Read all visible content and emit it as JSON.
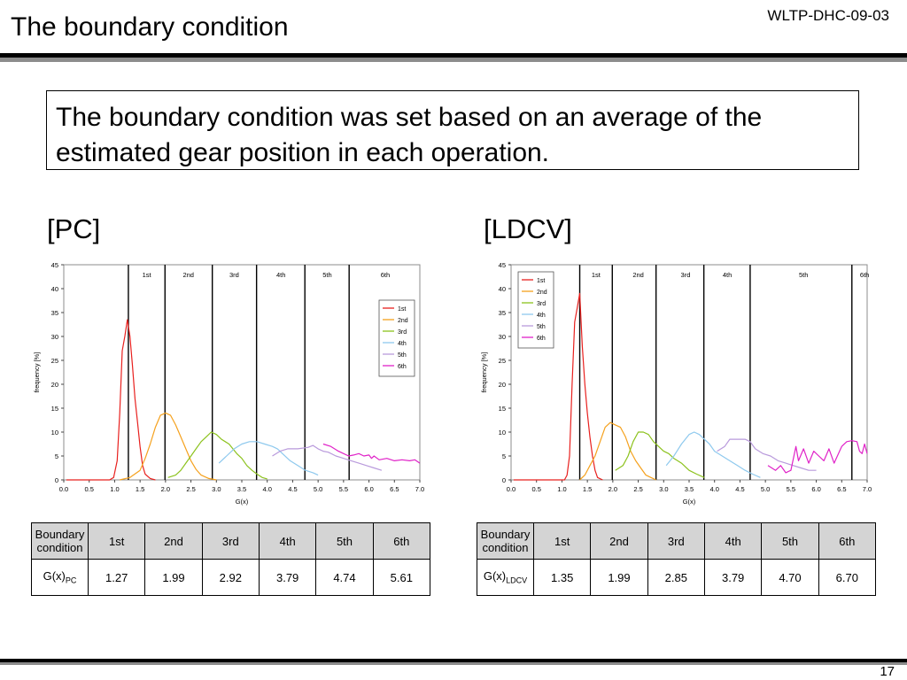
{
  "slide": {
    "title": "The boundary condition",
    "doc_id": "WLTP-DHC-09-03",
    "summary": "The boundary condition was set based on an average of the estimated gear position in each operation.",
    "page_number": "17"
  },
  "panels": [
    {
      "label": "[PC]"
    },
    {
      "label": "[LDCV]"
    }
  ],
  "chart_data": [
    {
      "type": "line",
      "xlabel": "G(x)",
      "ylabel": "frequency [%]",
      "xlim": [
        0.0,
        7.0
      ],
      "ylim": [
        0,
        45
      ],
      "xticks": [
        "0.0",
        "0.5",
        "1.0",
        "1.5",
        "2.0",
        "2.5",
        "3.0",
        "3.5",
        "4.0",
        "4.5",
        "5.0",
        "5.5",
        "6.0",
        "6.5",
        "7.0"
      ],
      "yticks": [
        "0",
        "5",
        "10",
        "15",
        "20",
        "25",
        "30",
        "35",
        "40",
        "45"
      ],
      "grid": false,
      "legend_position": "right",
      "boundaries": [
        1.27,
        1.99,
        2.92,
        3.79,
        4.74,
        5.61
      ],
      "band_labels": [
        {
          "text": "1st",
          "x": 1.63
        },
        {
          "text": "2nd",
          "x": 2.45
        },
        {
          "text": "3rd",
          "x": 3.35
        },
        {
          "text": "4th",
          "x": 4.27
        },
        {
          "text": "5th",
          "x": 5.18
        },
        {
          "text": "6th",
          "x": 6.32
        }
      ],
      "series": [
        {
          "name": "1st",
          "color": "#e8201e",
          "points": [
            [
              0.05,
              0
            ],
            [
              0.9,
              0
            ],
            [
              0.98,
              0.5
            ],
            [
              1.05,
              4
            ],
            [
              1.1,
              14
            ],
            [
              1.15,
              27
            ],
            [
              1.2,
              30
            ],
            [
              1.25,
              33.5
            ],
            [
              1.3,
              30
            ],
            [
              1.35,
              24
            ],
            [
              1.4,
              17
            ],
            [
              1.45,
              12
            ],
            [
              1.5,
              7
            ],
            [
              1.55,
              3
            ],
            [
              1.6,
              1.2
            ],
            [
              1.7,
              0.3
            ],
            [
              1.8,
              0
            ]
          ]
        },
        {
          "name": "2nd",
          "color": "#f5a11d",
          "points": [
            [
              1.1,
              0
            ],
            [
              1.3,
              0.5
            ],
            [
              1.5,
              2
            ],
            [
              1.6,
              4.5
            ],
            [
              1.7,
              7.5
            ],
            [
              1.8,
              11
            ],
            [
              1.9,
              13.5
            ],
            [
              2.0,
              14
            ],
            [
              2.1,
              13.5
            ],
            [
              2.2,
              11.5
            ],
            [
              2.3,
              9
            ],
            [
              2.4,
              6.5
            ],
            [
              2.5,
              4
            ],
            [
              2.6,
              2.2
            ],
            [
              2.7,
              1
            ],
            [
              2.85,
              0.3
            ],
            [
              3.0,
              0
            ]
          ]
        },
        {
          "name": "3rd",
          "color": "#8cc21d",
          "points": [
            [
              2.05,
              0.5
            ],
            [
              2.2,
              1
            ],
            [
              2.3,
              2
            ],
            [
              2.4,
              3.5
            ],
            [
              2.5,
              5
            ],
            [
              2.6,
              6.5
            ],
            [
              2.7,
              8
            ],
            [
              2.8,
              9
            ],
            [
              2.9,
              10
            ],
            [
              3.0,
              9.5
            ],
            [
              3.1,
              8.5
            ],
            [
              3.25,
              7.5
            ],
            [
              3.4,
              5.5
            ],
            [
              3.5,
              4.5
            ],
            [
              3.6,
              3
            ],
            [
              3.7,
              2
            ],
            [
              3.8,
              1.2
            ],
            [
              3.9,
              0.5
            ],
            [
              4.0,
              0.2
            ]
          ]
        },
        {
          "name": "4th",
          "color": "#8ec9ee",
          "points": [
            [
              3.05,
              3.5
            ],
            [
              3.2,
              5
            ],
            [
              3.35,
              6.5
            ],
            [
              3.5,
              7.5
            ],
            [
              3.65,
              8
            ],
            [
              3.8,
              8
            ],
            [
              3.95,
              7.5
            ],
            [
              4.1,
              7
            ],
            [
              4.2,
              6.5
            ],
            [
              4.3,
              5.5
            ],
            [
              4.45,
              4
            ],
            [
              4.6,
              3
            ],
            [
              4.75,
              2
            ],
            [
              4.9,
              1.5
            ],
            [
              5.0,
              1
            ]
          ]
        },
        {
          "name": "5th",
          "color": "#b99adc",
          "points": [
            [
              4.1,
              5
            ],
            [
              4.25,
              6
            ],
            [
              4.4,
              6.5
            ],
            [
              4.6,
              6.5
            ],
            [
              4.8,
              6.8
            ],
            [
              4.9,
              7.2
            ],
            [
              5.0,
              6.5
            ],
            [
              5.1,
              6
            ],
            [
              5.2,
              5.8
            ],
            [
              5.35,
              5
            ],
            [
              5.5,
              4.5
            ],
            [
              5.65,
              4
            ],
            [
              5.8,
              3.5
            ],
            [
              5.95,
              3
            ],
            [
              6.1,
              2.5
            ],
            [
              6.25,
              2
            ]
          ]
        },
        {
          "name": "6th",
          "color": "#e022c8",
          "points": [
            [
              5.1,
              7.5
            ],
            [
              5.25,
              7
            ],
            [
              5.4,
              6
            ],
            [
              5.5,
              5.5
            ],
            [
              5.6,
              5
            ],
            [
              5.7,
              5.2
            ],
            [
              5.8,
              5.5
            ],
            [
              5.9,
              5
            ],
            [
              6.0,
              5.2
            ],
            [
              6.05,
              4.5
            ],
            [
              6.1,
              5
            ],
            [
              6.2,
              4.2
            ],
            [
              6.35,
              4.5
            ],
            [
              6.5,
              4
            ],
            [
              6.65,
              4.2
            ],
            [
              6.8,
              4
            ],
            [
              6.9,
              4.2
            ],
            [
              7.0,
              3.5
            ]
          ]
        }
      ]
    },
    {
      "type": "line",
      "xlabel": "G(x)",
      "ylabel": "frequency [%]",
      "xlim": [
        0.0,
        7.0
      ],
      "ylim": [
        0,
        45
      ],
      "xticks": [
        "0.0",
        "0.5",
        "1.0",
        "1.5",
        "2.0",
        "2.5",
        "3.0",
        "3.5",
        "4.0",
        "4.5",
        "5.0",
        "5.5",
        "6.0",
        "6.5",
        "7.0"
      ],
      "yticks": [
        "0",
        "5",
        "10",
        "15",
        "20",
        "25",
        "30",
        "35",
        "40",
        "45"
      ],
      "grid": false,
      "legend_position": "left",
      "boundaries": [
        1.35,
        1.99,
        2.85,
        3.79,
        4.7,
        6.7
      ],
      "band_labels": [
        {
          "text": "1st",
          "x": 1.67
        },
        {
          "text": "2nd",
          "x": 2.5
        },
        {
          "text": "3rd",
          "x": 3.43
        },
        {
          "text": "4th",
          "x": 4.25
        },
        {
          "text": "5th",
          "x": 5.75
        },
        {
          "text": "6th",
          "x": 6.95
        }
      ],
      "series": [
        {
          "name": "1st",
          "color": "#e8201e",
          "points": [
            [
              0.05,
              0
            ],
            [
              1.05,
              0
            ],
            [
              1.1,
              1
            ],
            [
              1.15,
              5
            ],
            [
              1.2,
              20
            ],
            [
              1.25,
              33
            ],
            [
              1.3,
              36
            ],
            [
              1.35,
              39
            ],
            [
              1.4,
              28
            ],
            [
              1.45,
              20
            ],
            [
              1.5,
              14
            ],
            [
              1.55,
              9
            ],
            [
              1.6,
              5
            ],
            [
              1.65,
              2
            ],
            [
              1.7,
              0.5
            ],
            [
              1.8,
              0
            ]
          ]
        },
        {
          "name": "2nd",
          "color": "#f5a11d",
          "points": [
            [
              1.35,
              0
            ],
            [
              1.45,
              1
            ],
            [
              1.55,
              3
            ],
            [
              1.65,
              5
            ],
            [
              1.75,
              8
            ],
            [
              1.85,
              11
            ],
            [
              1.95,
              12
            ],
            [
              2.05,
              11.5
            ],
            [
              2.15,
              11
            ],
            [
              2.25,
              9
            ],
            [
              2.35,
              6
            ],
            [
              2.45,
              4
            ],
            [
              2.55,
              2.5
            ],
            [
              2.65,
              1
            ],
            [
              2.75,
              0.5
            ],
            [
              2.85,
              0
            ]
          ]
        },
        {
          "name": "3rd",
          "color": "#8cc21d",
          "points": [
            [
              2.05,
              2
            ],
            [
              2.2,
              3
            ],
            [
              2.3,
              5
            ],
            [
              2.4,
              8
            ],
            [
              2.5,
              10
            ],
            [
              2.6,
              10
            ],
            [
              2.7,
              9.5
            ],
            [
              2.8,
              8
            ],
            [
              2.9,
              7
            ],
            [
              3.0,
              6
            ],
            [
              3.1,
              5.5
            ],
            [
              3.2,
              4.5
            ],
            [
              3.35,
              3.5
            ],
            [
              3.5,
              2
            ],
            [
              3.65,
              1.2
            ],
            [
              3.8,
              0.5
            ]
          ]
        },
        {
          "name": "4th",
          "color": "#8ec9ee",
          "points": [
            [
              3.05,
              3
            ],
            [
              3.2,
              5
            ],
            [
              3.35,
              7.5
            ],
            [
              3.5,
              9.5
            ],
            [
              3.6,
              10
            ],
            [
              3.7,
              9.5
            ],
            [
              3.8,
              8.5
            ],
            [
              3.9,
              7.5
            ],
            [
              4.0,
              6
            ],
            [
              4.15,
              5
            ],
            [
              4.3,
              4
            ],
            [
              4.45,
              3
            ],
            [
              4.6,
              2
            ],
            [
              4.75,
              1.2
            ],
            [
              4.9,
              0.5
            ]
          ]
        },
        {
          "name": "5th",
          "color": "#b99adc",
          "points": [
            [
              4.05,
              6
            ],
            [
              4.2,
              7
            ],
            [
              4.3,
              8.5
            ],
            [
              4.4,
              8.5
            ],
            [
              4.6,
              8.5
            ],
            [
              4.7,
              8
            ],
            [
              4.8,
              6.5
            ],
            [
              4.95,
              5.5
            ],
            [
              5.1,
              5
            ],
            [
              5.25,
              4
            ],
            [
              5.4,
              3.5
            ],
            [
              5.55,
              3
            ],
            [
              5.7,
              2.5
            ],
            [
              5.85,
              2
            ],
            [
              6.0,
              2
            ]
          ]
        },
        {
          "name": "6th",
          "color": "#e022c8",
          "points": [
            [
              5.05,
              3
            ],
            [
              5.2,
              2
            ],
            [
              5.3,
              3
            ],
            [
              5.4,
              1.5
            ],
            [
              5.5,
              2
            ],
            [
              5.6,
              7
            ],
            [
              5.65,
              4
            ],
            [
              5.75,
              6.5
            ],
            [
              5.85,
              3.5
            ],
            [
              5.95,
              6
            ],
            [
              6.05,
              5
            ],
            [
              6.15,
              4
            ],
            [
              6.25,
              6.5
            ],
            [
              6.35,
              3.5
            ],
            [
              6.5,
              7
            ],
            [
              6.6,
              8
            ],
            [
              6.7,
              8.2
            ],
            [
              6.8,
              8
            ],
            [
              6.85,
              6
            ],
            [
              6.9,
              5.5
            ],
            [
              6.95,
              7.5
            ],
            [
              7.0,
              5.5
            ]
          ]
        }
      ]
    }
  ],
  "tables": [
    {
      "header": [
        "Boundary\ncondition",
        "1st",
        "2nd",
        "3rd",
        "4th",
        "5th",
        "6th"
      ],
      "row_label_main": "G(x)",
      "row_label_sub": "PC",
      "values": [
        "1.27",
        "1.99",
        "2.92",
        "3.79",
        "4.74",
        "5.61"
      ]
    },
    {
      "header": [
        "Boundary\ncondition",
        "1st",
        "2nd",
        "3rd",
        "4th",
        "5th",
        "6th"
      ],
      "row_label_main": "G(x)",
      "row_label_sub": "LDCV",
      "values": [
        "1.35",
        "1.99",
        "2.85",
        "3.79",
        "4.70",
        "6.70"
      ]
    }
  ]
}
